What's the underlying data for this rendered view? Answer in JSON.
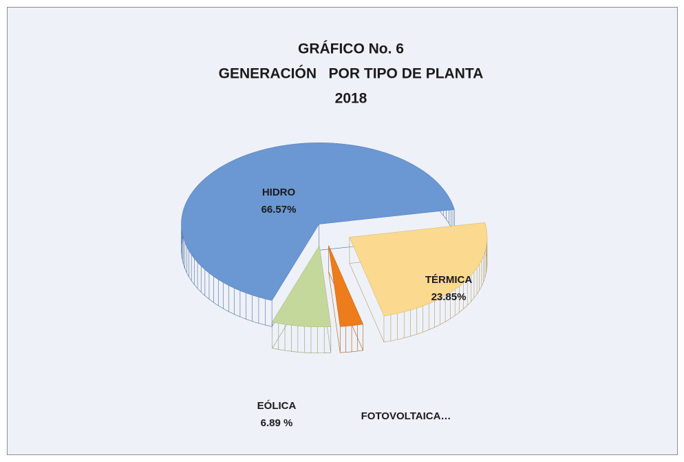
{
  "chart_data": {
    "type": "pie3d",
    "title": [
      "GRÁFICO No. 6",
      "GENERACIÓN   POR TIPO DE PLANTA",
      "2018"
    ],
    "categories": [
      "HIDRO",
      "TÉRMICA",
      "FOTOVOLTAICA…",
      "EÓLICA"
    ],
    "values": [
      66.57,
      23.85,
      2.69,
      6.89
    ],
    "value_labels": [
      "66.57%",
      "23.85%",
      null,
      "6.89 %"
    ],
    "colors": [
      "#6b97d3",
      "#fbd98f",
      "#ec7c1c",
      "#c5d89c"
    ]
  }
}
